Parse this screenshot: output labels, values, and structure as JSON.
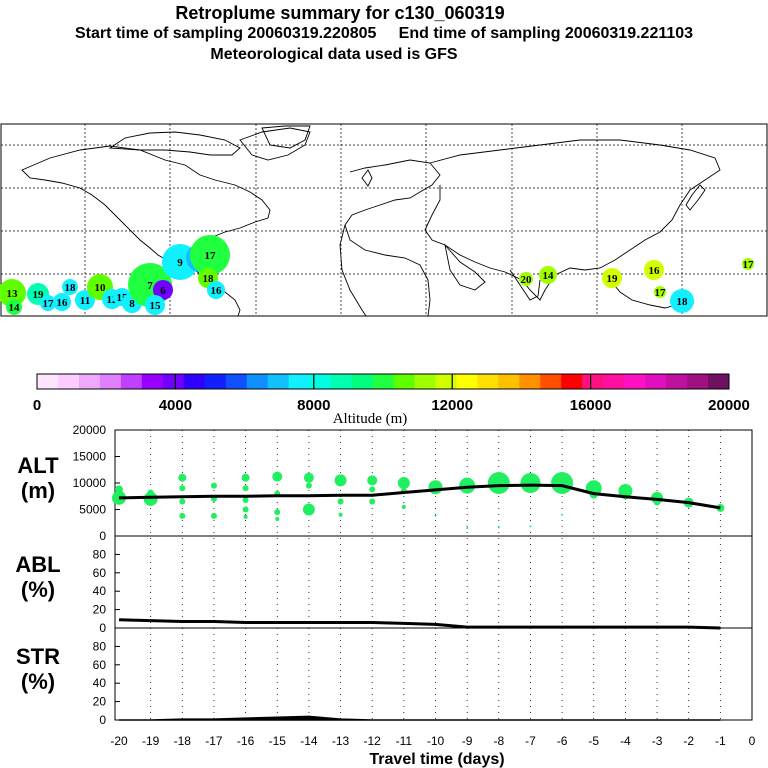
{
  "header": {
    "title": "Retroplume summary for c130_060319",
    "subtitle": "Start time of sampling 20060319.220805     End time of sampling 20060319.221103",
    "met": "Meteorological data used is GFS"
  },
  "colorbar": {
    "label": "Altitude (m)",
    "ticks": [
      "0",
      "4000",
      "8000",
      "12000",
      "16000",
      "20000"
    ],
    "colors": [
      "#ffe6ff",
      "#ffccff",
      "#f0a8ff",
      "#e080ff",
      "#c040ff",
      "#9a00ff",
      "#7000ff",
      "#3000ff",
      "#1020ff",
      "#1050ff",
      "#1090ff",
      "#10c0ff",
      "#10f0ff",
      "#00ffe0",
      "#00ffb0",
      "#00ff80",
      "#20ff40",
      "#60ff00",
      "#a0ff00",
      "#d0ff00",
      "#ffff00",
      "#ffe000",
      "#ffc000",
      "#ff9000",
      "#ff5000",
      "#ff0000",
      "#ff1080",
      "#ff10a0",
      "#ff10c0",
      "#e010c0",
      "#c010a0",
      "#a01080",
      "#701060"
    ]
  },
  "map_labels": [
    "13",
    "14",
    "19",
    "17",
    "16",
    "18",
    "11",
    "10",
    "12",
    "15",
    "8",
    "7",
    "6",
    "9",
    "20",
    "17",
    "18",
    "16",
    "15",
    "14",
    "20",
    "19",
    "16",
    "17",
    "18",
    "17"
  ],
  "panels": {
    "alt": {
      "name": "ALT",
      "unit": "(m)",
      "ticks": [
        "20000",
        "15000",
        "10000",
        "5000",
        "0"
      ]
    },
    "abl": {
      "name": "ABL",
      "unit": "(%)",
      "ticks": [
        "80",
        "60",
        "40",
        "20",
        "0"
      ]
    },
    "str": {
      "name": "STR",
      "unit": "(%)",
      "ticks": [
        "80",
        "60",
        "40",
        "20",
        "0"
      ]
    }
  },
  "xaxis": {
    "label": "Travel time (days)",
    "ticks": [
      "-20",
      "-19",
      "-18",
      "-17",
      "-16",
      "-15",
      "-14",
      "-13",
      "-12",
      "-11",
      "-10",
      "-9",
      "-8",
      "-7",
      "-6",
      "-5",
      "-4",
      "-3",
      "-2",
      "-1",
      "0"
    ]
  },
  "chart_data": [
    {
      "type": "line",
      "title": "ALT",
      "xlabel": "Travel time (days)",
      "ylabel": "ALT (m)",
      "ylim": [
        0,
        20000
      ],
      "xlim": [
        -20,
        0
      ],
      "series": [
        {
          "name": "mean altitude",
          "x": [
            -20,
            -19,
            -18,
            -17,
            -16,
            -15,
            -14,
            -13,
            -12,
            -11,
            -10,
            -9,
            -8,
            -7,
            -6,
            -5,
            -4,
            -3,
            -2,
            -1
          ],
          "values": [
            7200,
            7300,
            7400,
            7500,
            7500,
            7600,
            7600,
            7700,
            7700,
            8200,
            8700,
            9200,
            9500,
            9600,
            9500,
            8000,
            7400,
            6900,
            6300,
            5300
          ]
        },
        {
          "name": "plume clusters",
          "type": "scatter",
          "points": [
            {
              "x": -20,
              "y": 7200
            },
            {
              "x": -20,
              "y": 8800
            },
            {
              "x": -19,
              "y": 7000
            },
            {
              "x": -19,
              "y": 8200
            },
            {
              "x": -18,
              "y": 11000
            },
            {
              "x": -18,
              "y": 9000
            },
            {
              "x": -18,
              "y": 6500
            },
            {
              "x": -18,
              "y": 3800
            },
            {
              "x": -17,
              "y": 9500
            },
            {
              "x": -17,
              "y": 7000
            },
            {
              "x": -17,
              "y": 3800
            },
            {
              "x": -16,
              "y": 11000
            },
            {
              "x": -16,
              "y": 9000
            },
            {
              "x": -16,
              "y": 6800
            },
            {
              "x": -16,
              "y": 5000
            },
            {
              "x": -16,
              "y": 3600
            },
            {
              "x": -15,
              "y": 11200
            },
            {
              "x": -15,
              "y": 8000
            },
            {
              "x": -15,
              "y": 4500
            },
            {
              "x": -15,
              "y": 3200
            },
            {
              "x": -14,
              "y": 11000
            },
            {
              "x": -14,
              "y": 9500
            },
            {
              "x": -14,
              "y": 5000
            },
            {
              "x": -13,
              "y": 10500
            },
            {
              "x": -13,
              "y": 6500
            },
            {
              "x": -13,
              "y": 4000
            },
            {
              "x": -12,
              "y": 10500
            },
            {
              "x": -12,
              "y": 8800
            },
            {
              "x": -12,
              "y": 6500
            },
            {
              "x": -11,
              "y": 10000
            },
            {
              "x": -11,
              "y": 8500
            },
            {
              "x": -11,
              "y": 5500
            },
            {
              "x": -10,
              "y": 9200
            },
            {
              "x": -10,
              "y": 3800
            },
            {
              "x": -9,
              "y": 9500
            },
            {
              "x": -9,
              "y": 1500
            },
            {
              "x": -8,
              "y": 10000
            },
            {
              "x": -8,
              "y": 1600
            },
            {
              "x": -7,
              "y": 10000
            },
            {
              "x": -7,
              "y": 1800
            },
            {
              "x": -6,
              "y": 10000
            },
            {
              "x": -6,
              "y": 4000
            },
            {
              "x": -5,
              "y": 9000
            },
            {
              "x": -5,
              "y": 7800
            },
            {
              "x": -4,
              "y": 8500
            },
            {
              "x": -4,
              "y": 7400
            },
            {
              "x": -3,
              "y": 7200
            },
            {
              "x": -3,
              "y": 6300
            },
            {
              "x": -2,
              "y": 6300
            },
            {
              "x": -1,
              "y": 5300
            }
          ]
        }
      ]
    },
    {
      "type": "line",
      "title": "ABL",
      "xlabel": "Travel time (days)",
      "ylabel": "ABL (%)",
      "ylim": [
        0,
        100
      ],
      "xlim": [
        -20,
        0
      ],
      "series": [
        {
          "name": "ABL fraction",
          "x": [
            -20,
            -19,
            -18,
            -17,
            -16,
            -15,
            -14,
            -13,
            -12,
            -11,
            -10,
            -9,
            -8,
            -7,
            -6,
            -5,
            -4,
            -3,
            -2,
            -1
          ],
          "values": [
            9,
            8,
            7,
            7,
            6,
            6,
            6,
            6,
            6,
            5,
            4,
            1,
            1,
            1,
            1,
            1,
            1,
            1,
            1,
            0
          ]
        }
      ]
    },
    {
      "type": "area",
      "title": "STR",
      "xlabel": "Travel time (days)",
      "ylabel": "STR (%)",
      "ylim": [
        0,
        100
      ],
      "xlim": [
        -20,
        0
      ],
      "series": [
        {
          "name": "STR fraction",
          "x": [
            -20,
            -19,
            -18,
            -17,
            -16,
            -15,
            -14,
            -13,
            -12,
            -11,
            -10,
            -9,
            -8,
            -7,
            -6,
            -5,
            -4,
            -3,
            -2,
            -1
          ],
          "values": [
            0,
            0,
            1,
            1,
            2,
            3,
            4,
            1,
            0,
            0,
            0,
            0,
            0,
            0,
            0,
            0,
            0,
            0,
            0,
            0
          ]
        }
      ]
    }
  ]
}
